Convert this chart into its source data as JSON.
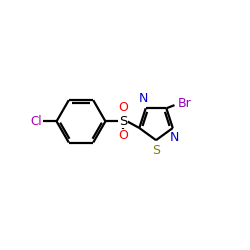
{
  "background_color": "#ffffff",
  "atom_colors": {
    "N": "#0000cd",
    "S_thiadiazole": "#808000",
    "O": "#ff0000",
    "Br": "#9900bb",
    "Cl": "#aa00aa"
  },
  "bond_color": "#000000",
  "lw": 1.6,
  "figsize": [
    2.5,
    2.5
  ],
  "dpi": 100
}
